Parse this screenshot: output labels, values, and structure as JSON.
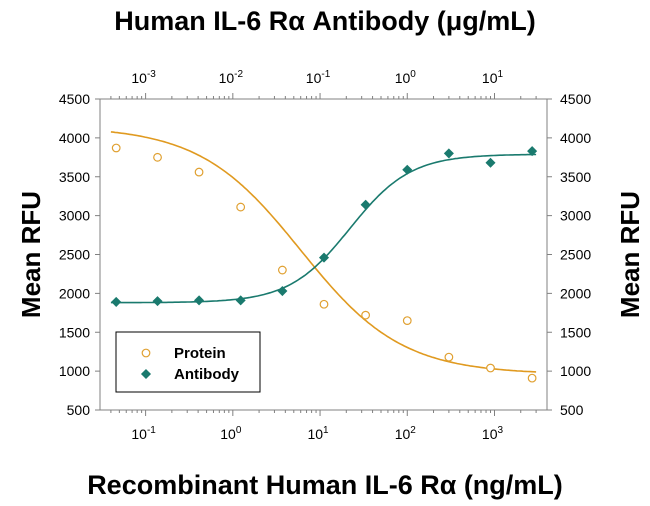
{
  "chart_data": {
    "type": "scatter",
    "title_top": "Human IL-6 Rα Antibody (μg/mL)",
    "xlabel": "Recombinant Human IL-6 Rα (ng/mL)",
    "ylabel_left": "Mean RFU",
    "ylabel_right": "Mean RFU",
    "x_scale": "log",
    "xlim": [
      0.03,
      4000
    ],
    "ylim": [
      500,
      4500
    ],
    "y_ticks": [
      "4500",
      "4000",
      "3500",
      "3000",
      "2500",
      "2000",
      "1500",
      "1000",
      "500"
    ],
    "x_ticks_bottom": [
      {
        "base": "10",
        "exp": "-1"
      },
      {
        "base": "10",
        "exp": "0"
      },
      {
        "base": "10",
        "exp": "1"
      },
      {
        "base": "10",
        "exp": "2"
      },
      {
        "base": "10",
        "exp": "3"
      }
    ],
    "x_ticks_top": [
      {
        "base": "10",
        "exp": "-3"
      },
      {
        "base": "10",
        "exp": "-2"
      },
      {
        "base": "10",
        "exp": "-1"
      },
      {
        "base": "10",
        "exp": "0"
      },
      {
        "base": "10",
        "exp": "1"
      }
    ],
    "top_axis_note": "top axis 10^k at bottom 10^(k+2)",
    "grid": false,
    "legend_position": "lower-left",
    "series": [
      {
        "name": "Protein",
        "marker": "open-circle",
        "color": "#E0A030",
        "line_color": "#E09A20",
        "x": [
          0.046,
          0.137,
          0.41,
          1.23,
          3.7,
          11.1,
          33.3,
          100,
          300,
          900,
          2700
        ],
        "y": [
          3870,
          3750,
          3560,
          3110,
          2300,
          1860,
          1720,
          1650,
          1180,
          1040,
          910
        ]
      },
      {
        "name": "Antibody",
        "marker": "filled-diamond",
        "color": "#1A7A6E",
        "line_color": "#1A7A6E",
        "x": [
          0.046,
          0.137,
          0.41,
          1.23,
          3.7,
          11.1,
          33.3,
          100,
          300,
          900,
          2700
        ],
        "y": [
          1890,
          1900,
          1910,
          1910,
          2030,
          2460,
          3140,
          3590,
          3800,
          3680,
          3830
        ]
      }
    ]
  }
}
